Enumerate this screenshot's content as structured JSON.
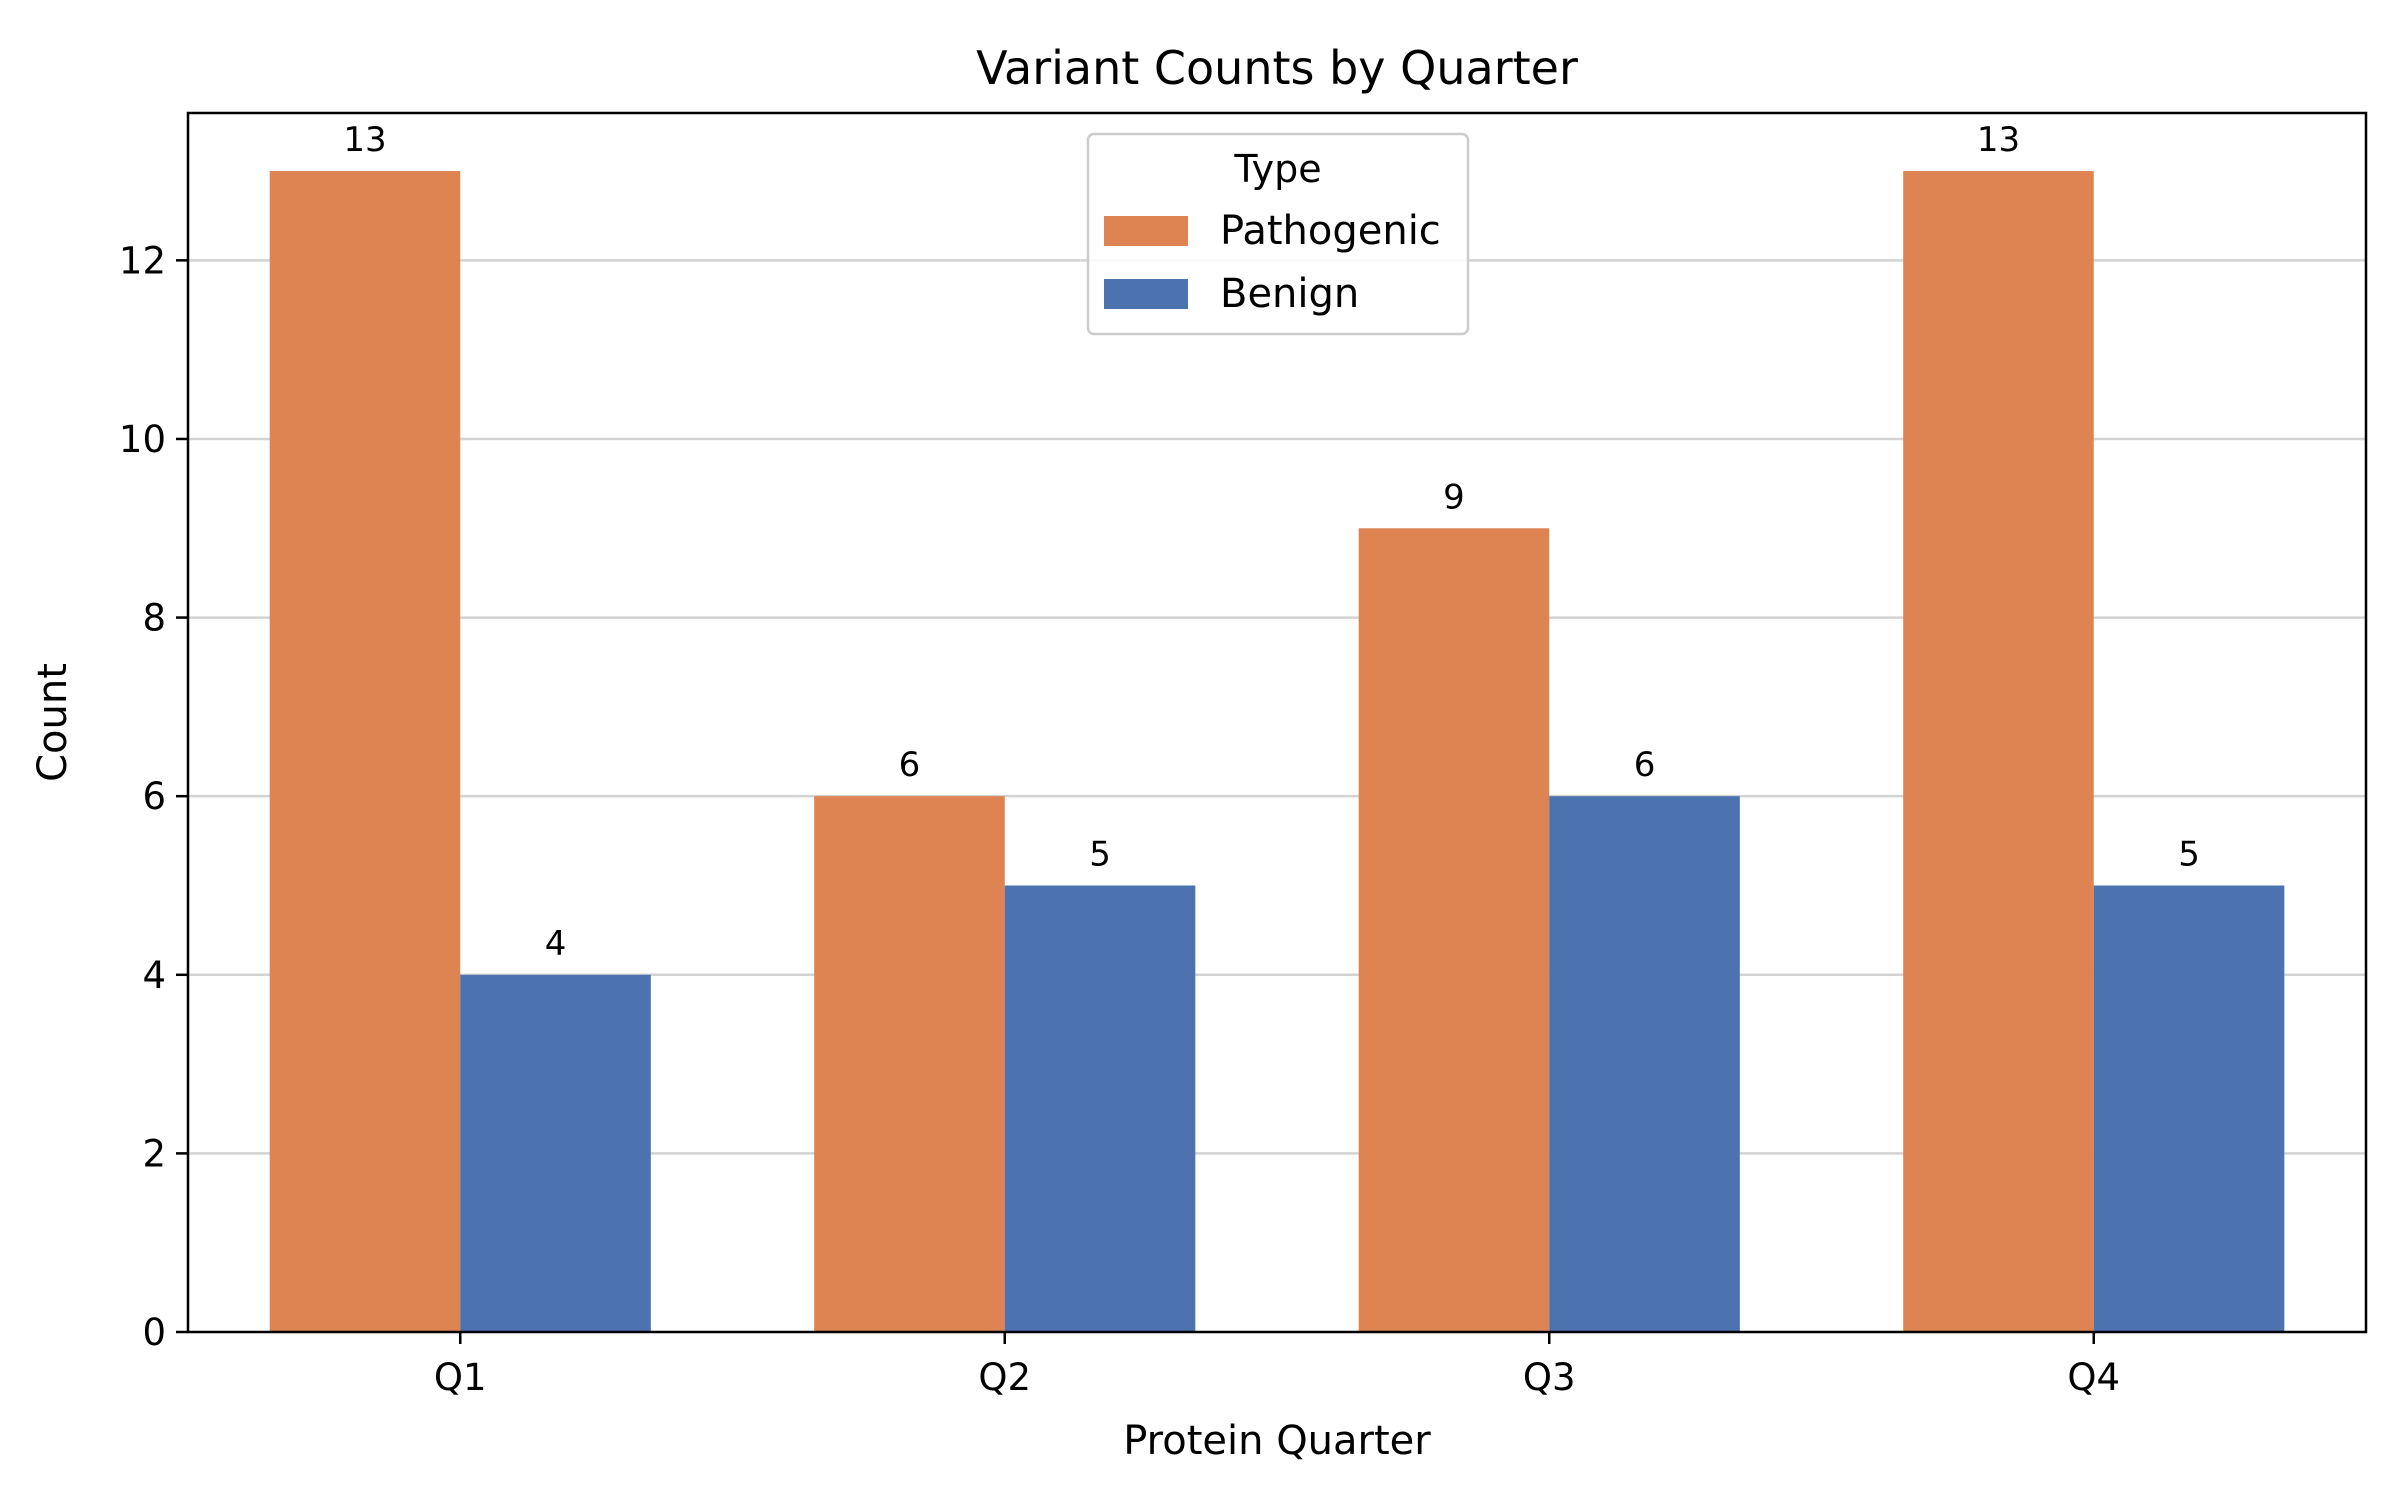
{
  "chart_data": {
    "type": "bar",
    "title": "Variant Counts by Quarter",
    "xlabel": "Protein Quarter",
    "ylabel": "Count",
    "categories": [
      "Q1",
      "Q2",
      "Q3",
      "Q4"
    ],
    "ylim": [
      0,
      13.65
    ],
    "yticks": [
      0,
      2,
      4,
      6,
      8,
      10,
      12
    ],
    "grid": "horizontal",
    "legend": {
      "title": "Type",
      "placement": "top-center"
    },
    "series": [
      {
        "name": "Pathogenic",
        "color": "#DD8452",
        "values": [
          13,
          6,
          9,
          13
        ]
      },
      {
        "name": "Benign",
        "color": "#4C72B0",
        "values": [
          4,
          5,
          6,
          5
        ]
      }
    ]
  }
}
